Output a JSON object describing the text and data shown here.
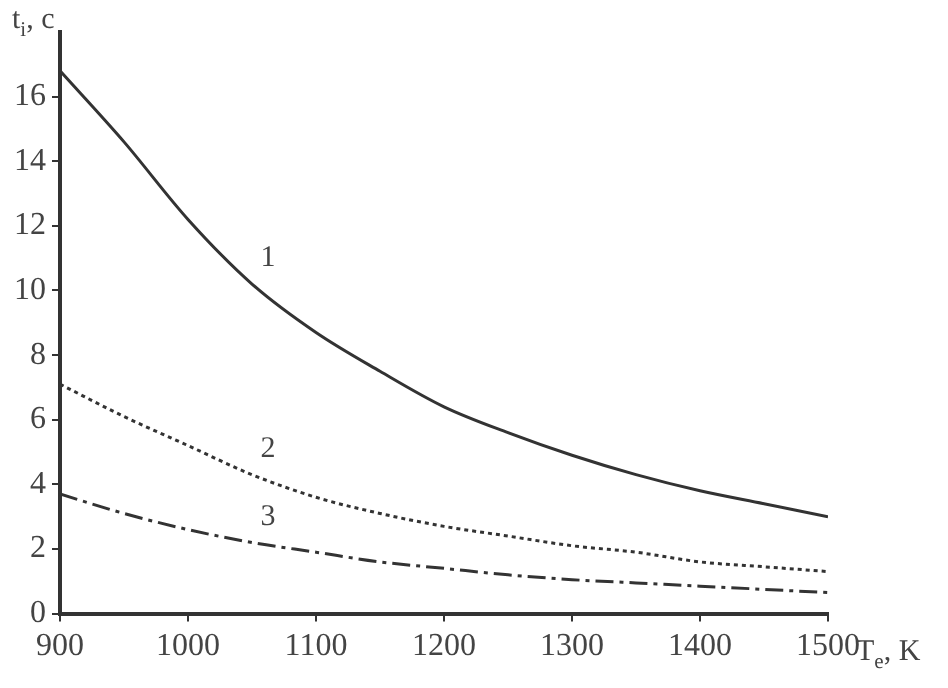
{
  "chart_data": {
    "type": "line",
    "xlabel": "T$_{e}$, K",
    "ylabel": "t$_{i}$, c",
    "x": [
      900,
      950,
      1000,
      1050,
      1100,
      1150,
      1200,
      1250,
      1300,
      1350,
      1400,
      1450,
      1500
    ],
    "series": [
      {
        "name": "1",
        "color": "#333333",
        "line_style": "solid",
        "values": [
          16.8,
          14.6,
          12.2,
          10.2,
          8.7,
          7.5,
          6.4,
          5.6,
          4.9,
          4.3,
          3.8,
          3.4,
          3.0
        ]
      },
      {
        "name": "2",
        "color": "#333333",
        "line_style": "dotted",
        "values": [
          7.1,
          6.1,
          5.2,
          4.3,
          3.6,
          3.1,
          2.7,
          2.4,
          2.1,
          1.9,
          1.6,
          1.45,
          1.3
        ]
      },
      {
        "name": "3",
        "color": "#333333",
        "line_style": "dashdot",
        "values": [
          3.7,
          3.1,
          2.6,
          2.2,
          1.9,
          1.6,
          1.4,
          1.2,
          1.05,
          0.95,
          0.85,
          0.75,
          0.65
        ]
      }
    ],
    "xlim": [
      900,
      1500
    ],
    "xticks": [
      900,
      1000,
      1100,
      1200,
      1300,
      1400,
      1500
    ],
    "ylim": [
      0,
      18
    ],
    "yticks": [
      0,
      2,
      4,
      6,
      8,
      10,
      12,
      14,
      16
    ],
    "grid": false,
    "legend": false,
    "marker": "none"
  }
}
